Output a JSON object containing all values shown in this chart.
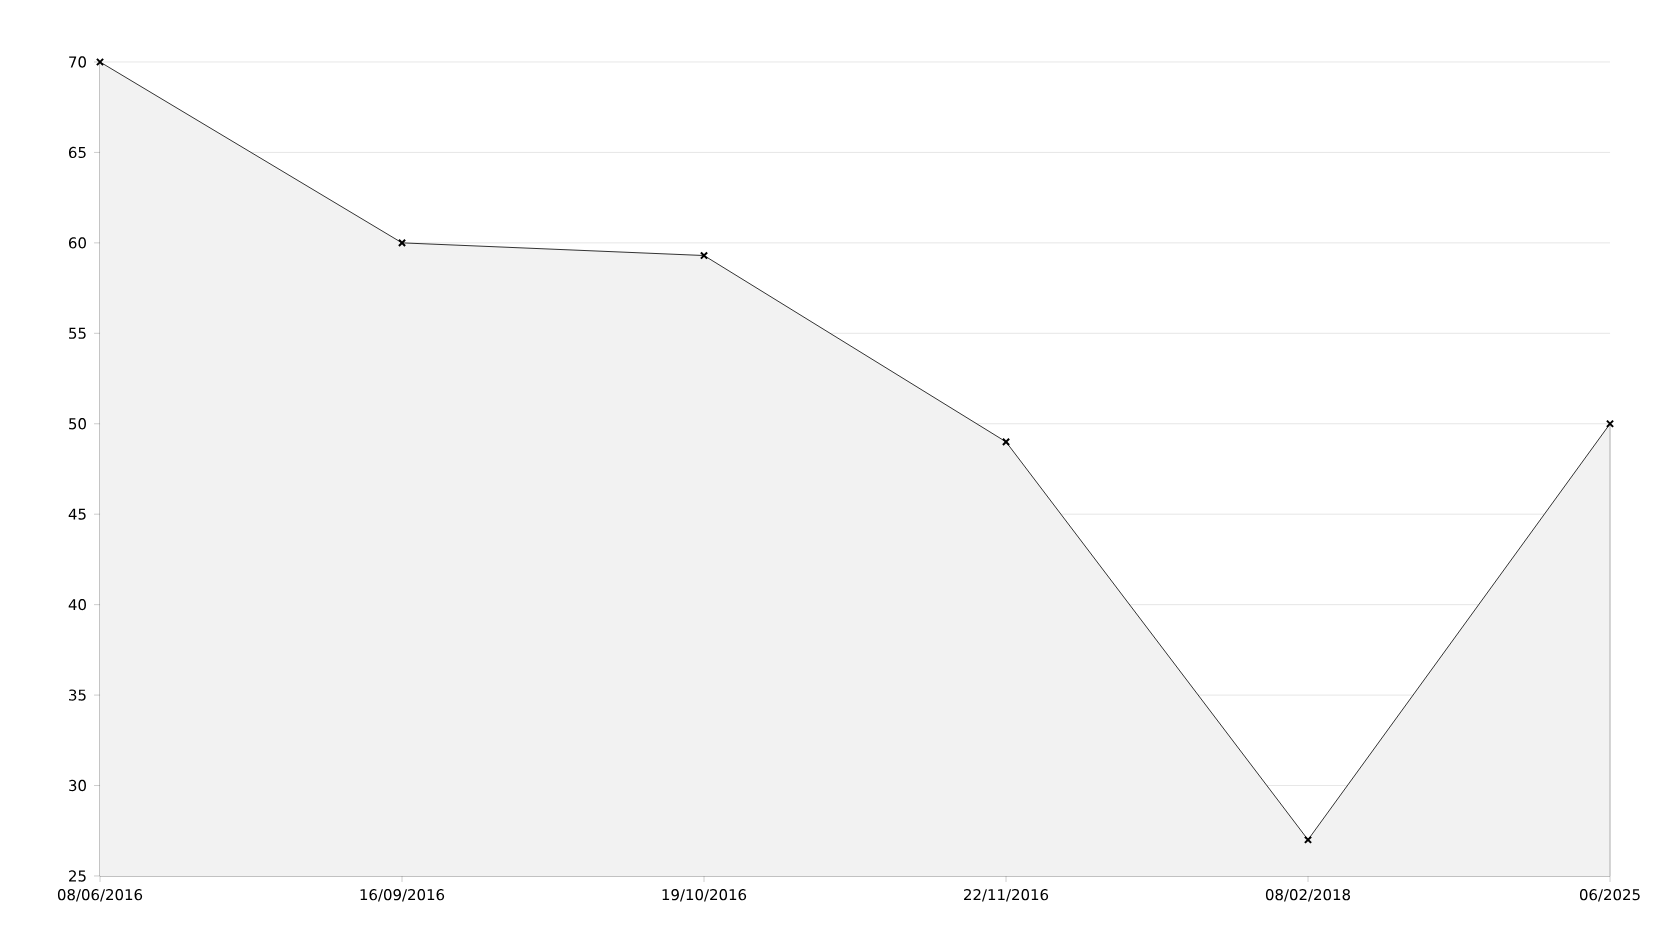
{
  "chart_data": {
    "type": "area",
    "categories": [
      "08/06/2016",
      "16/09/2016",
      "19/10/2016",
      "22/11/2016",
      "08/02/2018",
      "06/2025"
    ],
    "values": [
      70,
      60,
      59.3,
      49,
      27,
      50
    ],
    "color": "#000000",
    "ylim": [
      25,
      70
    ],
    "yticks": [
      25,
      30,
      35,
      40,
      45,
      50,
      55,
      60,
      65,
      70
    ],
    "grid": "y",
    "marker": "cross",
    "line_style": "solid"
  }
}
